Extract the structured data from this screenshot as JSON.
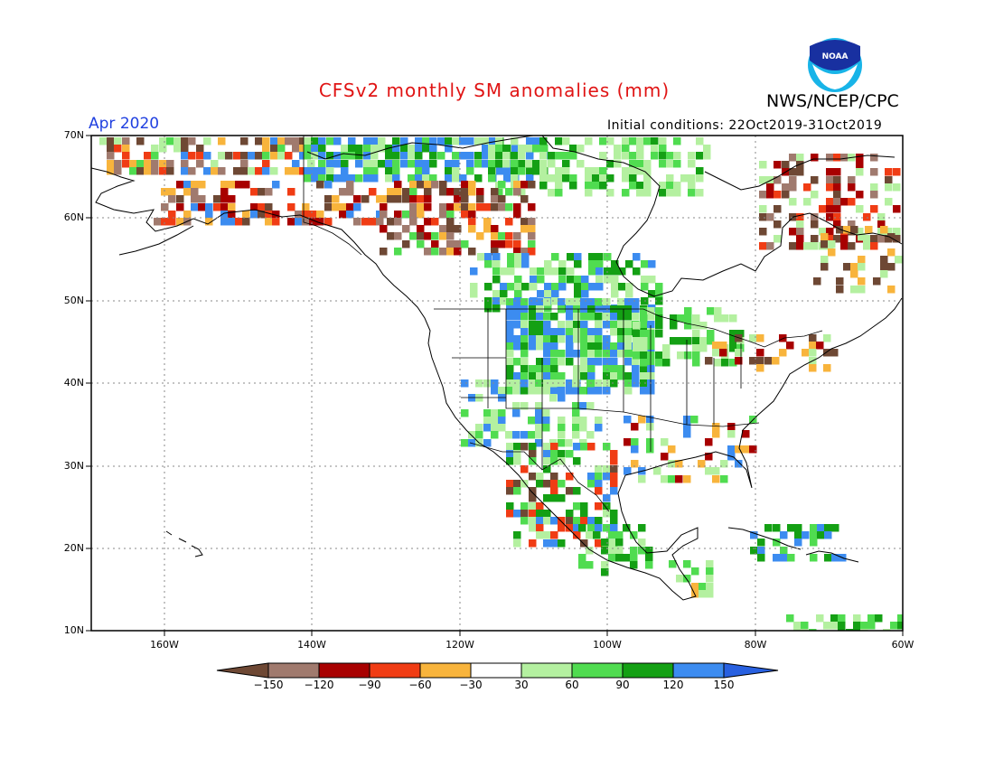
{
  "title": "CFSv2 monthly SM anomalies (mm)",
  "org": "NWS/NCEP/CPC",
  "logo_text": "NOAA",
  "period": "Apr 2020",
  "initial_conditions": "Initial conditions: 22Oct2019-31Oct2019",
  "lat_labels": [
    "70N",
    "60N",
    "50N",
    "40N",
    "30N",
    "20N",
    "10N"
  ],
  "lon_labels": [
    "160W",
    "140W",
    "120W",
    "100W",
    "80W",
    "60W"
  ],
  "colorbar": {
    "labels": [
      "-150",
      "-120",
      "-90",
      "-60",
      "-30",
      "30",
      "60",
      "90",
      "120",
      "150"
    ],
    "colors": [
      "#6e4834",
      "#a07a6e",
      "#a80000",
      "#f03c14",
      "#f8b43c",
      "#ffffff",
      "#b4f0a0",
      "#50dc50",
      "#14a014",
      "#3c8cf0",
      "#2860e0"
    ]
  }
}
